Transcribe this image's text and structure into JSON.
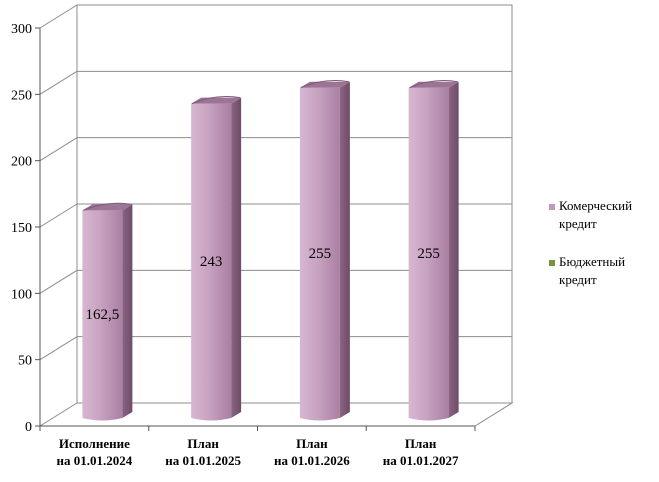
{
  "chart_data": {
    "type": "bar",
    "categories": [
      [
        "Исполнение",
        "на 01.01.2024"
      ],
      [
        "План",
        "на 01.01.2025"
      ],
      [
        "План",
        "на 01.01.2026"
      ],
      [
        "План",
        "на 01.01.2027"
      ]
    ],
    "series": [
      {
        "name": "Комерческий кредит",
        "values": [
          162.5,
          243,
          255,
          255
        ],
        "data_labels": [
          "162,5",
          "243",
          "255",
          "255"
        ],
        "color": "#C09BB9"
      },
      {
        "name": "Бюджетный кредит",
        "values": [
          0,
          0,
          0,
          0
        ],
        "data_labels": [],
        "color": "#77933C"
      }
    ],
    "y_ticks": [
      "0",
      "50",
      "100",
      "150",
      "200",
      "250",
      "300"
    ],
    "ylim": [
      0,
      300
    ],
    "grid": true,
    "legend_position": "right",
    "legend": [
      {
        "lines": [
          "Комерческий",
          "кредит"
        ],
        "color": "#C09BB9"
      },
      {
        "lines": [
          "Бюджетный",
          "кредит"
        ],
        "color": "#77933C"
      }
    ]
  }
}
